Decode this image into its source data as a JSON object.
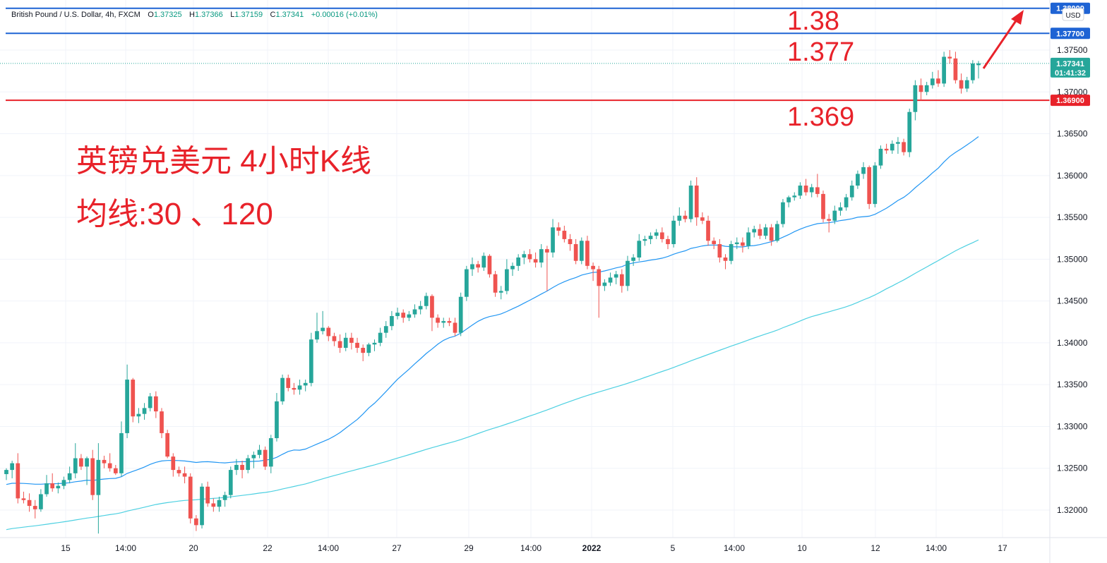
{
  "legend": {
    "symbol": "British Pound / U.S. Dollar, 4h, FXCM",
    "open_label": "O",
    "open": "1.37325",
    "high_label": "H",
    "high": "1.37366",
    "low_label": "L",
    "low": "1.37159",
    "close_label": "C",
    "close": "1.37341",
    "change": "+0.00016 (+0.01%)"
  },
  "currency": "USD",
  "annotations": {
    "title": "英镑兑美元 4小时K线",
    "subtitle": "均线:30 、120",
    "level_high": "1.38",
    "level_mid": "1.377",
    "level_low": "1.369"
  },
  "colors": {
    "up": "#26a69a",
    "down": "#ef5350",
    "ma30": "#2196f3",
    "ma120": "#4dd0e1",
    "blue_line": "#1e63d4",
    "red_line": "#e8222a",
    "annotation": "#e8222a"
  },
  "chart_data": {
    "type": "candlestick",
    "x_ticks": [
      "15",
      "14:00",
      "20",
      "22",
      "14:00",
      "27",
      "29",
      "14:00",
      "2022",
      "5",
      "14:00",
      "10",
      "12",
      "14:00",
      "17"
    ],
    "y_ticks": [
      "1.32000",
      "1.32500",
      "1.33000",
      "1.33500",
      "1.34000",
      "1.34500",
      "1.35000",
      "1.35500",
      "1.36000",
      "1.36500",
      "1.37000",
      "1.37500"
    ],
    "ylim": [
      1.3168,
      1.3805
    ],
    "horizontal_lines": [
      {
        "price": 1.38,
        "label": "1.38000",
        "color": "#1e63d4"
      },
      {
        "price": 1.377,
        "label": "1.37700",
        "color": "#1e63d4"
      },
      {
        "price": 1.369,
        "label": "1.36900",
        "color": "#e8222a"
      }
    ],
    "last_price": {
      "price": 1.37341,
      "label": "1.37341",
      "countdown": "01:41:32"
    },
    "candles": [
      [
        1.3243,
        1.325,
        1.3236,
        1.3248
      ],
      [
        1.3248,
        1.3259,
        1.3238,
        1.3256
      ],
      [
        1.3256,
        1.3268,
        1.3208,
        1.3214
      ],
      [
        1.3214,
        1.3222,
        1.3208,
        1.3212
      ],
      [
        1.3212,
        1.322,
        1.3198,
        1.3205
      ],
      [
        1.3205,
        1.3212,
        1.319,
        1.3201
      ],
      [
        1.3201,
        1.3225,
        1.3198,
        1.3219
      ],
      [
        1.3219,
        1.3242,
        1.3216,
        1.3232
      ],
      [
        1.3232,
        1.3244,
        1.3222,
        1.3226
      ],
      [
        1.3226,
        1.3233,
        1.322,
        1.3229
      ],
      [
        1.3229,
        1.324,
        1.3225,
        1.3236
      ],
      [
        1.3236,
        1.3252,
        1.3232,
        1.3244
      ],
      [
        1.3244,
        1.328,
        1.3238,
        1.3262
      ],
      [
        1.3262,
        1.3267,
        1.3248,
        1.3252
      ],
      [
        1.3252,
        1.3264,
        1.323,
        1.3262
      ],
      [
        1.3262,
        1.3272,
        1.3212,
        1.3218
      ],
      [
        1.3218,
        1.328,
        1.3172,
        1.326
      ],
      [
        1.326,
        1.3265,
        1.325,
        1.3256
      ],
      [
        1.3256,
        1.3268,
        1.3246,
        1.325
      ],
      [
        1.325,
        1.3254,
        1.3242,
        1.3244
      ],
      [
        1.3244,
        1.3306,
        1.324,
        1.3292
      ],
      [
        1.3292,
        1.3374,
        1.3286,
        1.3356
      ],
      [
        1.3356,
        1.3358,
        1.3305,
        1.3312
      ],
      [
        1.3312,
        1.3322,
        1.3304,
        1.3315
      ],
      [
        1.3315,
        1.3328,
        1.3308,
        1.3322
      ],
      [
        1.3322,
        1.334,
        1.3318,
        1.3336
      ],
      [
        1.3336,
        1.3342,
        1.331,
        1.3318
      ],
      [
        1.3318,
        1.3322,
        1.3286,
        1.3292
      ],
      [
        1.3292,
        1.3296,
        1.3262,
        1.3264
      ],
      [
        1.3264,
        1.3268,
        1.324,
        1.3248
      ],
      [
        1.3248,
        1.3252,
        1.324,
        1.3244
      ],
      [
        1.3244,
        1.3252,
        1.3232,
        1.324
      ],
      [
        1.324,
        1.3244,
        1.3184,
        1.319
      ],
      [
        1.319,
        1.3194,
        1.3175,
        1.3182
      ],
      [
        1.3182,
        1.3232,
        1.3178,
        1.3228
      ],
      [
        1.3228,
        1.3234,
        1.3204,
        1.3208
      ],
      [
        1.3208,
        1.3214,
        1.3198,
        1.3204
      ],
      [
        1.3204,
        1.3216,
        1.3198,
        1.3212
      ],
      [
        1.3212,
        1.3222,
        1.3204,
        1.3218
      ],
      [
        1.3218,
        1.3252,
        1.3214,
        1.3248
      ],
      [
        1.3248,
        1.3261,
        1.3242,
        1.3254
      ],
      [
        1.3254,
        1.3259,
        1.3238,
        1.3248
      ],
      [
        1.3248,
        1.3266,
        1.3244,
        1.3262
      ],
      [
        1.3262,
        1.327,
        1.325,
        1.3266
      ],
      [
        1.3266,
        1.3278,
        1.3262,
        1.3272
      ],
      [
        1.3272,
        1.3276,
        1.3248,
        1.3252
      ],
      [
        1.3252,
        1.329,
        1.3244,
        1.3286
      ],
      [
        1.3286,
        1.334,
        1.3282,
        1.333
      ],
      [
        1.333,
        1.3362,
        1.3326,
        1.3358
      ],
      [
        1.3358,
        1.3362,
        1.3342,
        1.3346
      ],
      [
        1.3346,
        1.3352,
        1.3338,
        1.3344
      ],
      [
        1.3344,
        1.3356,
        1.3338,
        1.3349
      ],
      [
        1.3349,
        1.3356,
        1.3342,
        1.3352
      ],
      [
        1.3352,
        1.3412,
        1.3348,
        1.3404
      ],
      [
        1.3404,
        1.3436,
        1.34,
        1.3414
      ],
      [
        1.3414,
        1.3438,
        1.341,
        1.3418
      ],
      [
        1.3418,
        1.342,
        1.3402,
        1.3408
      ],
      [
        1.3408,
        1.3412,
        1.3396,
        1.3402
      ],
      [
        1.3402,
        1.341,
        1.3388,
        1.3394
      ],
      [
        1.3394,
        1.3412,
        1.339,
        1.3406
      ],
      [
        1.3406,
        1.3412,
        1.3392,
        1.34
      ],
      [
        1.34,
        1.3406,
        1.3388,
        1.3394
      ],
      [
        1.3394,
        1.3398,
        1.3378,
        1.3388
      ],
      [
        1.3388,
        1.34,
        1.3384,
        1.3398
      ],
      [
        1.3398,
        1.3404,
        1.339,
        1.34
      ],
      [
        1.34,
        1.3418,
        1.3396,
        1.3412
      ],
      [
        1.3412,
        1.3426,
        1.3406,
        1.342
      ],
      [
        1.342,
        1.3438,
        1.3415,
        1.3432
      ],
      [
        1.3432,
        1.3442,
        1.3428,
        1.3436
      ],
      [
        1.3436,
        1.344,
        1.3424,
        1.343
      ],
      [
        1.343,
        1.3438,
        1.3426,
        1.3434
      ],
      [
        1.3434,
        1.3446,
        1.343,
        1.344
      ],
      [
        1.344,
        1.345,
        1.3434,
        1.3444
      ],
      [
        1.3444,
        1.346,
        1.344,
        1.3456
      ],
      [
        1.3456,
        1.3458,
        1.3414,
        1.343
      ],
      [
        1.343,
        1.3434,
        1.3418,
        1.3424
      ],
      [
        1.3424,
        1.343,
        1.3418,
        1.3426
      ],
      [
        1.3426,
        1.343,
        1.342,
        1.3424
      ],
      [
        1.3424,
        1.343,
        1.3408,
        1.3412
      ],
      [
        1.3412,
        1.346,
        1.3408,
        1.3455
      ],
      [
        1.3455,
        1.3492,
        1.345,
        1.3488
      ],
      [
        1.3488,
        1.3502,
        1.348,
        1.3494
      ],
      [
        1.3494,
        1.3498,
        1.3484,
        1.349
      ],
      [
        1.349,
        1.3508,
        1.3486,
        1.3504
      ],
      [
        1.3504,
        1.3506,
        1.3478,
        1.3482
      ],
      [
        1.3482,
        1.3486,
        1.3455,
        1.346
      ],
      [
        1.346,
        1.3468,
        1.3452,
        1.3462
      ],
      [
        1.3462,
        1.35,
        1.3458,
        1.3488
      ],
      [
        1.3488,
        1.3496,
        1.348,
        1.3492
      ],
      [
        1.3492,
        1.3506,
        1.3486,
        1.3502
      ],
      [
        1.3502,
        1.351,
        1.3494,
        1.3506
      ],
      [
        1.3506,
        1.3512,
        1.3496,
        1.35
      ],
      [
        1.35,
        1.3508,
        1.349,
        1.3496
      ],
      [
        1.3496,
        1.3518,
        1.349,
        1.3512
      ],
      [
        1.3512,
        1.3516,
        1.3462,
        1.3508
      ],
      [
        1.3508,
        1.3548,
        1.3502,
        1.3538
      ],
      [
        1.3538,
        1.3544,
        1.3528,
        1.3534
      ],
      [
        1.3534,
        1.354,
        1.352,
        1.3524
      ],
      [
        1.3524,
        1.353,
        1.351,
        1.3518
      ],
      [
        1.3518,
        1.3524,
        1.3494,
        1.3498
      ],
      [
        1.3498,
        1.3526,
        1.3494,
        1.3522
      ],
      [
        1.3522,
        1.3528,
        1.3488,
        1.3492
      ],
      [
        1.3492,
        1.3496,
        1.3474,
        1.3488
      ],
      [
        1.3488,
        1.3492,
        1.343,
        1.3468
      ],
      [
        1.3468,
        1.3476,
        1.3462,
        1.3472
      ],
      [
        1.3472,
        1.3484,
        1.3468,
        1.3478
      ],
      [
        1.3478,
        1.3486,
        1.347,
        1.3482
      ],
      [
        1.3482,
        1.3488,
        1.346,
        1.3468
      ],
      [
        1.3468,
        1.3504,
        1.3462,
        1.3498
      ],
      [
        1.3498,
        1.3506,
        1.3492,
        1.3502
      ],
      [
        1.3502,
        1.353,
        1.3498,
        1.3522
      ],
      [
        1.3522,
        1.3528,
        1.3516,
        1.3524
      ],
      [
        1.3524,
        1.3532,
        1.3518,
        1.3528
      ],
      [
        1.3528,
        1.3536,
        1.3524,
        1.3532
      ],
      [
        1.3532,
        1.3538,
        1.352,
        1.3524
      ],
      [
        1.3524,
        1.3528,
        1.3512,
        1.3518
      ],
      [
        1.3518,
        1.3552,
        1.3514,
        1.3546
      ],
      [
        1.3546,
        1.3562,
        1.354,
        1.3552
      ],
      [
        1.3552,
        1.3558,
        1.3544,
        1.3548
      ],
      [
        1.3548,
        1.3594,
        1.3544,
        1.3588
      ],
      [
        1.3588,
        1.3598,
        1.354,
        1.355
      ],
      [
        1.355,
        1.3556,
        1.3542,
        1.3546
      ],
      [
        1.3546,
        1.3552,
        1.3516,
        1.3522
      ],
      [
        1.3522,
        1.3526,
        1.3512,
        1.3518
      ],
      [
        1.3518,
        1.3524,
        1.3496,
        1.3502
      ],
      [
        1.3502,
        1.3506,
        1.3488,
        1.3498
      ],
      [
        1.3498,
        1.3522,
        1.3494,
        1.3518
      ],
      [
        1.3518,
        1.3526,
        1.3512,
        1.352
      ],
      [
        1.352,
        1.3526,
        1.3508,
        1.3516
      ],
      [
        1.3516,
        1.3538,
        1.3512,
        1.3532
      ],
      [
        1.3532,
        1.354,
        1.3526,
        1.3536
      ],
      [
        1.3536,
        1.3542,
        1.3524,
        1.3528
      ],
      [
        1.3528,
        1.3542,
        1.3524,
        1.3538
      ],
      [
        1.3538,
        1.3542,
        1.3516,
        1.3522
      ],
      [
        1.3522,
        1.3546,
        1.352,
        1.3542
      ],
      [
        1.3542,
        1.3572,
        1.3538,
        1.3568
      ],
      [
        1.3568,
        1.3576,
        1.3562,
        1.3574
      ],
      [
        1.3574,
        1.358,
        1.357,
        1.3576
      ],
      [
        1.3576,
        1.3592,
        1.3572,
        1.3588
      ],
      [
        1.3588,
        1.3596,
        1.3576,
        1.358
      ],
      [
        1.358,
        1.359,
        1.3574,
        1.3586
      ],
      [
        1.3586,
        1.3602,
        1.3574,
        1.3578
      ],
      [
        1.3578,
        1.3582,
        1.3544,
        1.3548
      ],
      [
        1.3548,
        1.3554,
        1.3532,
        1.3546
      ],
      [
        1.3546,
        1.3564,
        1.3542,
        1.3558
      ],
      [
        1.3558,
        1.3568,
        1.3552,
        1.3562
      ],
      [
        1.3562,
        1.3578,
        1.3558,
        1.3574
      ],
      [
        1.3574,
        1.3594,
        1.357,
        1.3588
      ],
      [
        1.3588,
        1.3606,
        1.3584,
        1.3602
      ],
      [
        1.3602,
        1.3616,
        1.3596,
        1.361
      ],
      [
        1.361,
        1.3612,
        1.356,
        1.3566
      ],
      [
        1.3566,
        1.3616,
        1.3562,
        1.3612
      ],
      [
        1.3612,
        1.3636,
        1.3608,
        1.3632
      ],
      [
        1.3632,
        1.3638,
        1.3626,
        1.363
      ],
      [
        1.363,
        1.3642,
        1.3626,
        1.3638
      ],
      [
        1.3638,
        1.3646,
        1.3626,
        1.364
      ],
      [
        1.364,
        1.3644,
        1.3624,
        1.3628
      ],
      [
        1.3628,
        1.368,
        1.3622,
        1.3676
      ],
      [
        1.3676,
        1.3714,
        1.3666,
        1.3708
      ],
      [
        1.3708,
        1.3716,
        1.369,
        1.37
      ],
      [
        1.37,
        1.3712,
        1.3696,
        1.3708
      ],
      [
        1.3708,
        1.3724,
        1.3704,
        1.3716
      ],
      [
        1.3716,
        1.3726,
        1.3706,
        1.371
      ],
      [
        1.371,
        1.3748,
        1.3706,
        1.3742
      ],
      [
        1.3742,
        1.375,
        1.3734,
        1.374
      ],
      [
        1.374,
        1.3748,
        1.371,
        1.3714
      ],
      [
        1.3714,
        1.3722,
        1.3698,
        1.3704
      ],
      [
        1.3704,
        1.3718,
        1.37,
        1.3714
      ],
      [
        1.3714,
        1.3738,
        1.371,
        1.3734
      ],
      [
        1.3732,
        1.3737,
        1.3716,
        1.3734
      ]
    ],
    "series": [
      {
        "name": "MA30",
        "color": "#2196f3"
      },
      {
        "name": "MA120",
        "color": "#4dd0e1"
      }
    ]
  }
}
